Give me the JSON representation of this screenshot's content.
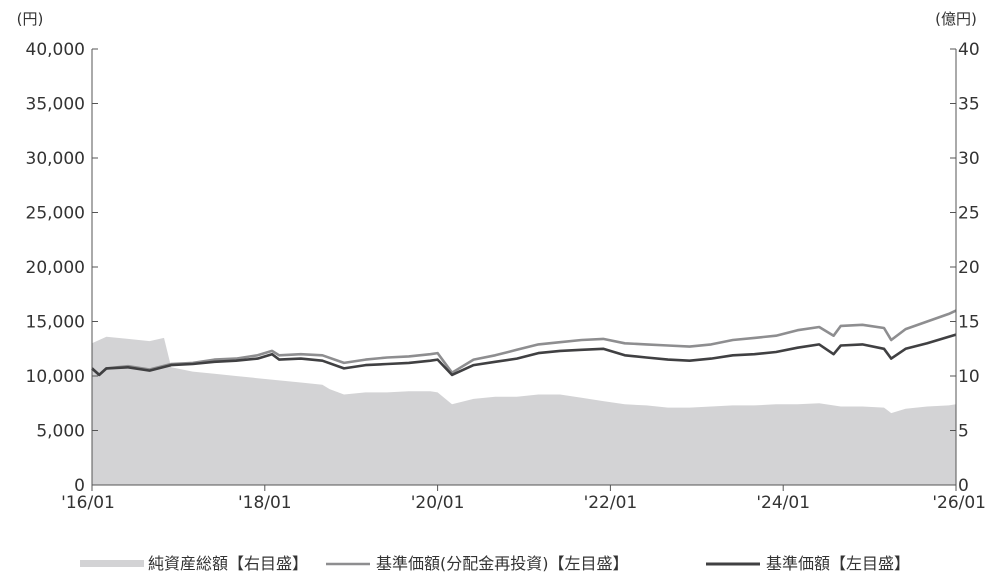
{
  "chart_data": {
    "type": "area",
    "title": "",
    "x_tick_labels": [
      "'16/01",
      "'18/01",
      "'20/01",
      "'22/01",
      "'24/01",
      "'26/01"
    ],
    "x_range": [
      "2016-01",
      "2026-01"
    ],
    "y_left": {
      "unit": "(円)",
      "range": [
        0,
        40000
      ],
      "tick_labels": [
        "0",
        "5,000",
        "10,000",
        "15,000",
        "20,000",
        "25,000",
        "30,000",
        "35,000",
        "40,000"
      ]
    },
    "y_right": {
      "unit": "(億円)",
      "range": [
        0,
        40
      ],
      "tick_labels": [
        "0",
        "5",
        "10",
        "15",
        "20",
        "25",
        "30",
        "35",
        "40"
      ]
    },
    "grid": false,
    "legend": {
      "placement": "bottom",
      "items": [
        "純資産総額【右目盛】",
        "基準価額(分配金再投資)【左目盛】",
        "基準価額【左目盛】"
      ]
    },
    "colors": {
      "net_assets": "#d3d3d5",
      "nav_reinvested": "#8e8e90",
      "nav": "#404042",
      "axis": "#555555"
    },
    "series": [
      {
        "name": "純資産総額【右目盛】",
        "axis": "right",
        "style": "area",
        "points": [
          [
            "2016-01",
            13.0
          ],
          [
            "2016-03",
            13.6
          ],
          [
            "2016-06",
            13.4
          ],
          [
            "2016-09",
            13.2
          ],
          [
            "2016-11",
            13.5
          ],
          [
            "2016-12",
            10.8
          ],
          [
            "2017-03",
            10.4
          ],
          [
            "2017-06",
            10.2
          ],
          [
            "2017-09",
            10.0
          ],
          [
            "2017-12",
            9.8
          ],
          [
            "2018-03",
            9.6
          ],
          [
            "2018-06",
            9.4
          ],
          [
            "2018-09",
            9.2
          ],
          [
            "2018-10",
            8.8
          ],
          [
            "2018-12",
            8.3
          ],
          [
            "2019-03",
            8.5
          ],
          [
            "2019-06",
            8.5
          ],
          [
            "2019-09",
            8.6
          ],
          [
            "2019-12",
            8.6
          ],
          [
            "2020-01",
            8.5
          ],
          [
            "2020-03",
            7.4
          ],
          [
            "2020-06",
            7.9
          ],
          [
            "2020-09",
            8.1
          ],
          [
            "2020-12",
            8.1
          ],
          [
            "2021-03",
            8.3
          ],
          [
            "2021-06",
            8.3
          ],
          [
            "2021-09",
            8.0
          ],
          [
            "2021-12",
            7.7
          ],
          [
            "2022-03",
            7.4
          ],
          [
            "2022-06",
            7.3
          ],
          [
            "2022-09",
            7.1
          ],
          [
            "2022-12",
            7.1
          ],
          [
            "2023-03",
            7.2
          ],
          [
            "2023-06",
            7.3
          ],
          [
            "2023-09",
            7.3
          ],
          [
            "2023-12",
            7.4
          ],
          [
            "2024-03",
            7.4
          ],
          [
            "2024-06",
            7.5
          ],
          [
            "2024-09",
            7.2
          ],
          [
            "2024-12",
            7.2
          ],
          [
            "2025-03",
            7.1
          ],
          [
            "2025-04",
            6.6
          ],
          [
            "2025-06",
            7.0
          ],
          [
            "2025-09",
            7.2
          ],
          [
            "2025-12",
            7.3
          ],
          [
            "2026-01",
            7.4
          ]
        ]
      },
      {
        "name": "基準価額(分配金再投資)【左目盛】",
        "axis": "left",
        "style": "line",
        "points": [
          [
            "2016-01",
            10700
          ],
          [
            "2016-02",
            10100
          ],
          [
            "2016-03",
            10700
          ],
          [
            "2016-06",
            10900
          ],
          [
            "2016-09",
            10600
          ],
          [
            "2016-12",
            11100
          ],
          [
            "2017-03",
            11200
          ],
          [
            "2017-06",
            11500
          ],
          [
            "2017-09",
            11600
          ],
          [
            "2017-12",
            11900
          ],
          [
            "2018-02",
            12300
          ],
          [
            "2018-03",
            11900
          ],
          [
            "2018-06",
            12000
          ],
          [
            "2018-09",
            11900
          ],
          [
            "2018-12",
            11200
          ],
          [
            "2019-03",
            11500
          ],
          [
            "2019-06",
            11700
          ],
          [
            "2019-09",
            11800
          ],
          [
            "2019-12",
            12000
          ],
          [
            "2020-01",
            12100
          ],
          [
            "2020-03",
            10300
          ],
          [
            "2020-06",
            11500
          ],
          [
            "2020-09",
            11900
          ],
          [
            "2020-12",
            12400
          ],
          [
            "2021-03",
            12900
          ],
          [
            "2021-06",
            13100
          ],
          [
            "2021-09",
            13300
          ],
          [
            "2021-12",
            13400
          ],
          [
            "2022-03",
            13000
          ],
          [
            "2022-06",
            12900
          ],
          [
            "2022-09",
            12800
          ],
          [
            "2022-12",
            12700
          ],
          [
            "2023-03",
            12900
          ],
          [
            "2023-06",
            13300
          ],
          [
            "2023-09",
            13500
          ],
          [
            "2023-12",
            13700
          ],
          [
            "2024-03",
            14200
          ],
          [
            "2024-06",
            14500
          ],
          [
            "2024-08",
            13700
          ],
          [
            "2024-09",
            14600
          ],
          [
            "2024-12",
            14700
          ],
          [
            "2025-03",
            14400
          ],
          [
            "2025-04",
            13300
          ],
          [
            "2025-06",
            14300
          ],
          [
            "2025-09",
            15000
          ],
          [
            "2025-12",
            15700
          ],
          [
            "2026-01",
            16000
          ]
        ]
      },
      {
        "name": "基準価額【左目盛】",
        "axis": "left",
        "style": "line",
        "points": [
          [
            "2016-01",
            10700
          ],
          [
            "2016-02",
            10100
          ],
          [
            "2016-03",
            10700
          ],
          [
            "2016-06",
            10800
          ],
          [
            "2016-09",
            10500
          ],
          [
            "2016-12",
            11000
          ],
          [
            "2017-03",
            11100
          ],
          [
            "2017-06",
            11300
          ],
          [
            "2017-09",
            11400
          ],
          [
            "2017-12",
            11600
          ],
          [
            "2018-02",
            12000
          ],
          [
            "2018-03",
            11500
          ],
          [
            "2018-06",
            11600
          ],
          [
            "2018-09",
            11400
          ],
          [
            "2018-12",
            10700
          ],
          [
            "2019-03",
            11000
          ],
          [
            "2019-06",
            11100
          ],
          [
            "2019-09",
            11200
          ],
          [
            "2019-12",
            11400
          ],
          [
            "2020-01",
            11500
          ],
          [
            "2020-03",
            10100
          ],
          [
            "2020-06",
            11000
          ],
          [
            "2020-09",
            11300
          ],
          [
            "2020-12",
            11600
          ],
          [
            "2021-03",
            12100
          ],
          [
            "2021-06",
            12300
          ],
          [
            "2021-09",
            12400
          ],
          [
            "2021-12",
            12500
          ],
          [
            "2022-03",
            11900
          ],
          [
            "2022-06",
            11700
          ],
          [
            "2022-09",
            11500
          ],
          [
            "2022-12",
            11400
          ],
          [
            "2023-03",
            11600
          ],
          [
            "2023-06",
            11900
          ],
          [
            "2023-09",
            12000
          ],
          [
            "2023-12",
            12200
          ],
          [
            "2024-03",
            12600
          ],
          [
            "2024-06",
            12900
          ],
          [
            "2024-08",
            12000
          ],
          [
            "2024-09",
            12800
          ],
          [
            "2024-12",
            12900
          ],
          [
            "2025-03",
            12500
          ],
          [
            "2025-04",
            11600
          ],
          [
            "2025-06",
            12500
          ],
          [
            "2025-09",
            13000
          ],
          [
            "2025-12",
            13600
          ],
          [
            "2026-01",
            13800
          ]
        ]
      }
    ]
  }
}
